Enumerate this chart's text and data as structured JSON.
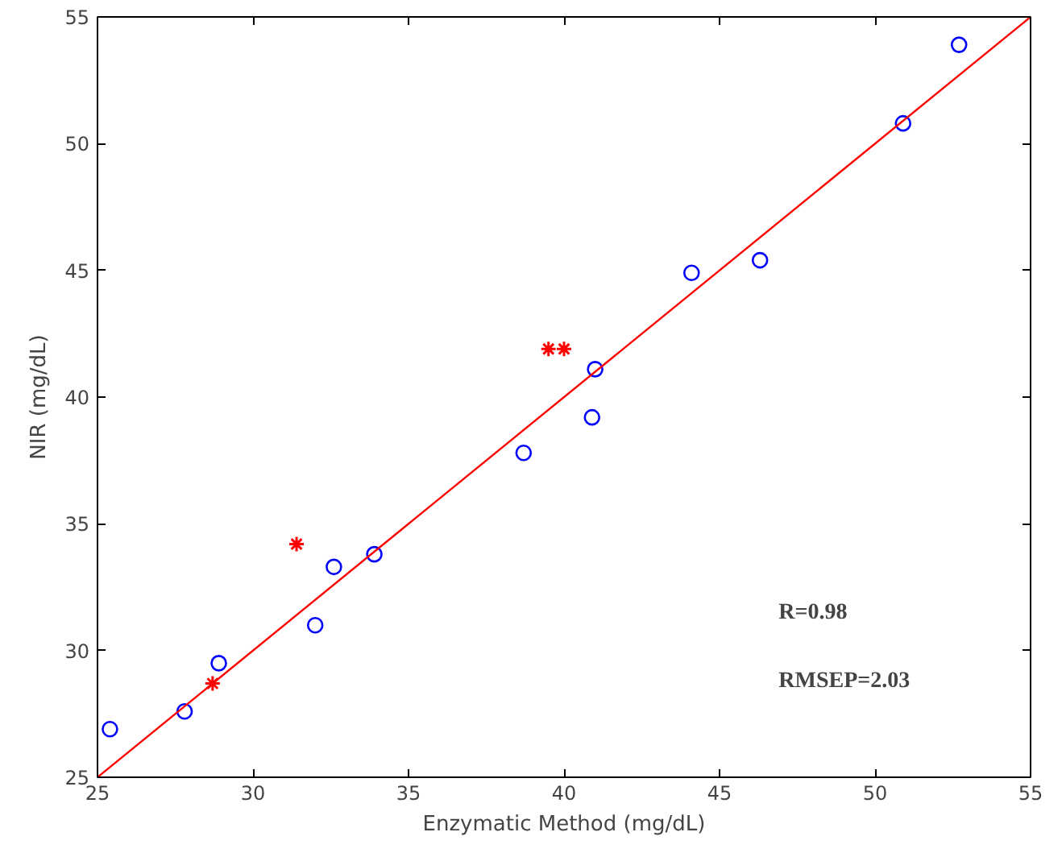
{
  "chart_data": {
    "type": "scatter",
    "xlabel": "Enzymatic Method (mg/dL)",
    "ylabel": "NIR (mg/dL)",
    "xlim": [
      25,
      55
    ],
    "ylim": [
      25,
      55
    ],
    "xticks": [
      25,
      30,
      35,
      40,
      45,
      50,
      55
    ],
    "yticks": [
      25,
      30,
      35,
      40,
      45,
      50,
      55
    ],
    "grid": false,
    "series": [
      {
        "marker": "circle",
        "color": "#0000ff",
        "x": [
          25.4,
          27.8,
          28.9,
          32.0,
          32.6,
          33.9,
          38.7,
          40.9,
          41.0,
          44.1,
          46.3,
          50.9,
          52.7
        ],
        "values": [
          26.9,
          27.6,
          29.5,
          31.0,
          33.3,
          33.8,
          37.8,
          39.2,
          41.1,
          44.9,
          45.4,
          50.8,
          53.9
        ]
      },
      {
        "marker": "cross",
        "color": "#ff0000",
        "x": [
          28.7,
          31.4,
          39.5,
          40.0
        ],
        "values": [
          28.7,
          34.2,
          41.9,
          41.9
        ]
      },
      {
        "type": "line",
        "marker": "none",
        "color": "#ff0000",
        "x": [
          25,
          55
        ],
        "values": [
          25,
          55
        ]
      }
    ],
    "annotations": [
      {
        "text": "R=0.98"
      },
      {
        "text": "RMSEP=2.03"
      }
    ]
  }
}
